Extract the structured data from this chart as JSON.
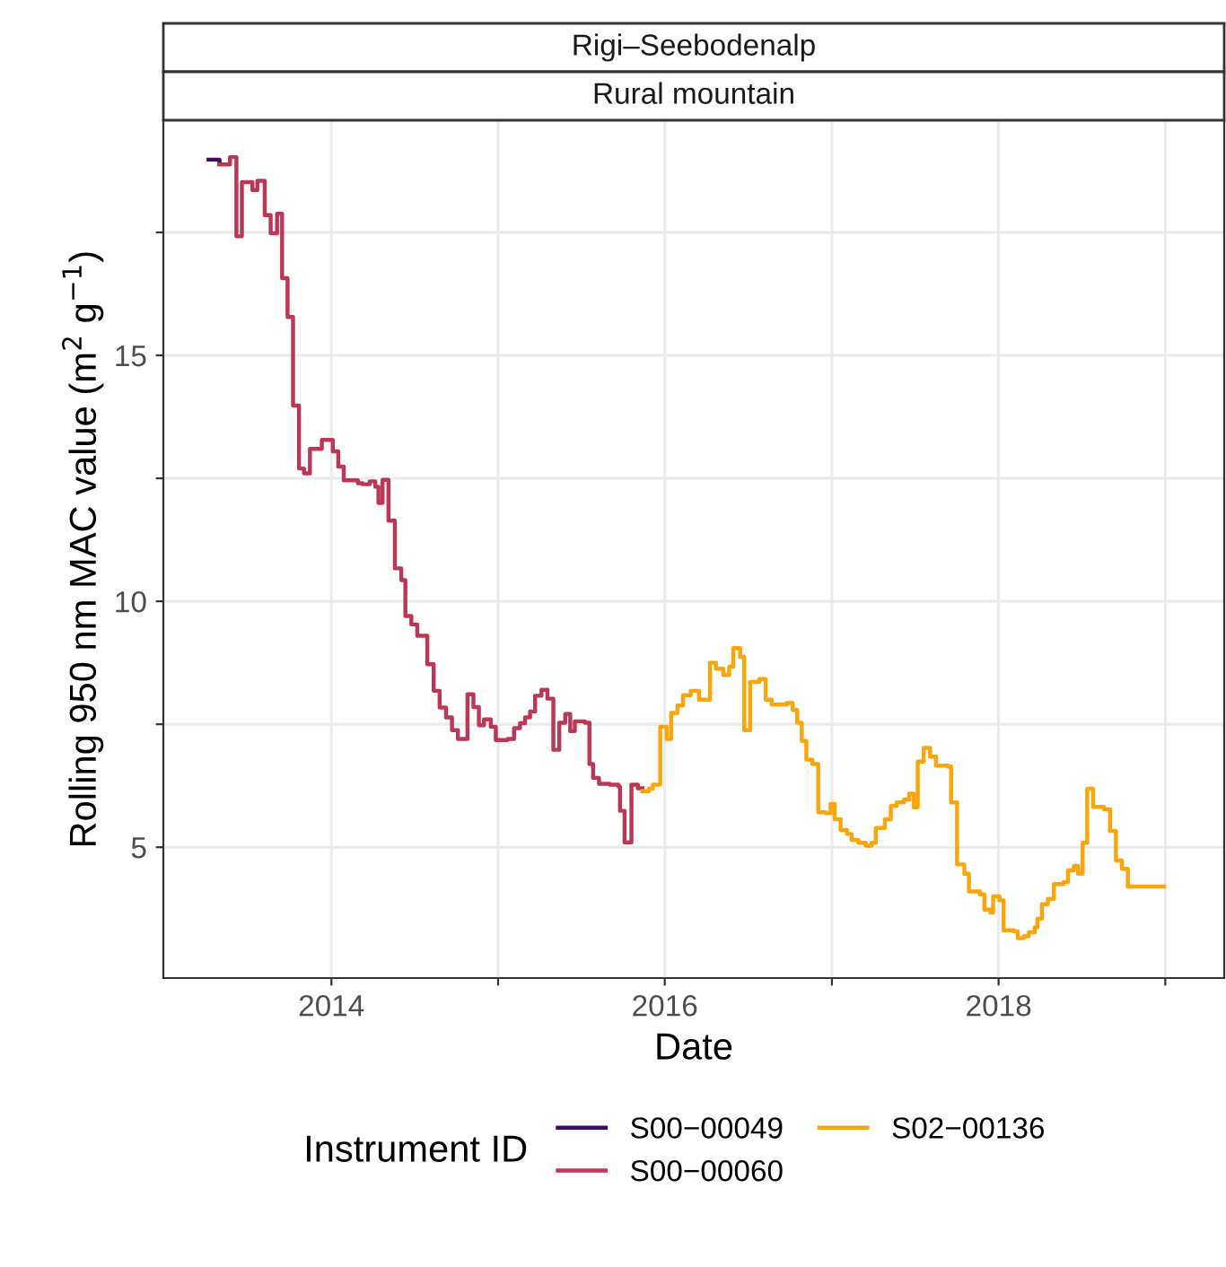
{
  "chart_data": {
    "type": "step",
    "title": "Rigi–Seebodenalp",
    "subtitle": "Rural mountain",
    "xlabel": "Date",
    "ylabel": "Rolling 950 nm MAC value (m$^{2}$ g$^{−1}$)",
    "legend_title": "Instrument ID",
    "xlim": [
      "2012-12-29",
      "2019-05-10"
    ],
    "ylim": [
      2.34,
      19.78
    ],
    "xticks": [
      {
        "value": "2014-01-01",
        "label": "2014"
      },
      {
        "value": "2015-01-01",
        "label": null
      },
      {
        "value": "2016-01-01",
        "label": "2016"
      },
      {
        "value": "2017-01-01",
        "label": null
      },
      {
        "value": "2018-01-01",
        "label": "2018"
      },
      {
        "value": "2019-01-01",
        "label": null
      }
    ],
    "yticks": [
      5,
      {
        "value": 7.5,
        "label": null
      },
      10,
      {
        "value": 12.5,
        "label": null
      },
      15,
      {
        "value": 17.5,
        "label": null
      }
    ],
    "grid": true,
    "legend": "bottom",
    "line_style": "solid",
    "series": [
      {
        "name": "S00−00049",
        "color": "#420a68",
        "x": [
          "2013-04-07",
          "2013-05-01"
        ],
        "values": [
          18.98,
          18.9
        ]
      },
      {
        "name": "S00−00060",
        "color": "#bc3754",
        "x": [
          "2013-05-01",
          "2013-05-24",
          "2013-06-07",
          "2013-06-19",
          "2013-07-12",
          "2013-07-23",
          "2013-08-08",
          "2013-08-21",
          "2013-09-04",
          "2013-09-15",
          "2013-09-27",
          "2013-10-09",
          "2013-10-22",
          "2013-11-02",
          "2013-11-15",
          "2013-12-11",
          "2014-01-04",
          "2014-01-16",
          "2014-01-28",
          "2014-02-28",
          "2014-03-10",
          "2014-03-26",
          "2014-04-07",
          "2014-04-14",
          "2014-04-23",
          "2014-05-06",
          "2014-05-20",
          "2014-06-03",
          "2014-06-12",
          "2014-06-25",
          "2014-07-08",
          "2014-07-30",
          "2014-08-13",
          "2014-08-26",
          "2014-09-09",
          "2014-09-22",
          "2014-10-05",
          "2014-10-26",
          "2014-11-08",
          "2014-11-20",
          "2014-12-01",
          "2014-12-16",
          "2014-12-27",
          "2015-01-22",
          "2015-02-05",
          "2015-02-18",
          "2015-03-01",
          "2015-03-12",
          "2015-03-23",
          "2015-04-06",
          "2015-04-19",
          "2015-05-02",
          "2015-05-15",
          "2015-05-28",
          "2015-06-08",
          "2015-06-18",
          "2015-07-10",
          "2015-07-20",
          "2015-07-28",
          "2015-08-10",
          "2015-09-02",
          "2015-09-22",
          "2015-09-25",
          "2015-10-05",
          "2015-10-20",
          "2015-11-03",
          "2015-11-13"
        ],
        "values": [
          18.88,
          19.03,
          17.42,
          18.52,
          18.36,
          18.55,
          17.85,
          17.48,
          17.88,
          16.57,
          15.78,
          13.98,
          12.7,
          12.6,
          13.1,
          13.28,
          13.05,
          12.74,
          12.46,
          12.4,
          12.38,
          12.44,
          12.33,
          12.0,
          12.47,
          11.64,
          10.67,
          10.43,
          9.7,
          9.53,
          9.3,
          8.72,
          8.18,
          7.84,
          7.64,
          7.38,
          7.2,
          8.11,
          7.85,
          7.48,
          7.6,
          7.45,
          7.18,
          7.2,
          7.42,
          7.52,
          7.64,
          7.76,
          8.08,
          8.2,
          8.02,
          6.98,
          7.53,
          7.71,
          7.36,
          7.56,
          7.53,
          6.69,
          6.41,
          6.29,
          6.27,
          6.23,
          5.74,
          5.1,
          6.27,
          6.2,
          6.2
        ]
      },
      {
        "name": "S02−00136",
        "color": "#fca50a",
        "x": [
          "2015-11-13",
          "2015-11-27",
          "2015-12-06",
          "2015-12-22",
          "2016-01-05",
          "2016-01-15",
          "2016-01-29",
          "2016-02-10",
          "2016-02-27",
          "2016-03-16",
          "2016-04-09",
          "2016-04-22",
          "2016-05-08",
          "2016-05-21",
          "2016-05-30",
          "2016-06-14",
          "2016-06-23",
          "2016-07-06",
          "2016-07-26",
          "2016-08-09",
          "2016-08-22",
          "2016-09-24",
          "2016-10-07",
          "2016-10-17",
          "2016-10-27",
          "2016-11-06",
          "2016-11-19",
          "2016-12-02",
          "2016-12-18",
          "2016-12-29",
          "2017-01-07",
          "2017-01-20",
          "2017-02-03",
          "2017-02-13",
          "2017-02-28",
          "2017-03-16",
          "2017-03-29",
          "2017-04-07",
          "2017-04-27",
          "2017-05-10",
          "2017-05-23",
          "2017-06-08",
          "2017-06-19",
          "2017-06-29",
          "2017-07-08",
          "2017-07-21",
          "2017-08-04",
          "2017-08-17",
          "2017-09-12",
          "2017-09-19",
          "2017-10-02",
          "2017-10-18",
          "2017-10-28",
          "2017-11-21",
          "2017-12-01",
          "2017-12-14",
          "2017-12-20",
          "2018-01-03",
          "2018-01-12",
          "2018-02-03",
          "2018-02-12",
          "2018-02-25",
          "2018-03-08",
          "2018-03-21",
          "2018-03-27",
          "2018-04-06",
          "2018-04-19",
          "2018-05-02",
          "2018-05-23",
          "2018-06-02",
          "2018-06-15",
          "2018-06-24",
          "2018-07-04",
          "2018-07-14",
          "2018-07-27",
          "2018-08-20",
          "2018-09-02",
          "2018-09-15",
          "2018-09-28",
          "2018-10-11",
          "2018-12-29"
        ],
        "values": [
          6.14,
          6.19,
          6.27,
          7.45,
          7.2,
          7.73,
          7.88,
          8.09,
          8.18,
          8.0,
          8.75,
          8.63,
          8.5,
          8.67,
          9.05,
          8.87,
          7.38,
          8.36,
          8.42,
          8.0,
          7.9,
          7.93,
          7.79,
          7.53,
          7.16,
          6.78,
          6.69,
          5.71,
          5.69,
          5.88,
          5.57,
          5.35,
          5.27,
          5.15,
          5.09,
          5.03,
          5.09,
          5.39,
          5.57,
          5.84,
          5.91,
          5.97,
          6.09,
          5.81,
          6.74,
          7.02,
          6.84,
          6.66,
          6.64,
          5.91,
          4.65,
          4.46,
          4.1,
          4.04,
          3.73,
          3.67,
          4.0,
          3.92,
          3.31,
          3.29,
          3.15,
          3.19,
          3.27,
          3.37,
          3.55,
          3.84,
          3.95,
          4.25,
          4.29,
          4.53,
          4.62,
          4.46,
          5.09,
          6.19,
          5.82,
          5.77,
          5.33,
          4.73,
          4.56,
          4.2,
          4.2
        ]
      }
    ]
  }
}
